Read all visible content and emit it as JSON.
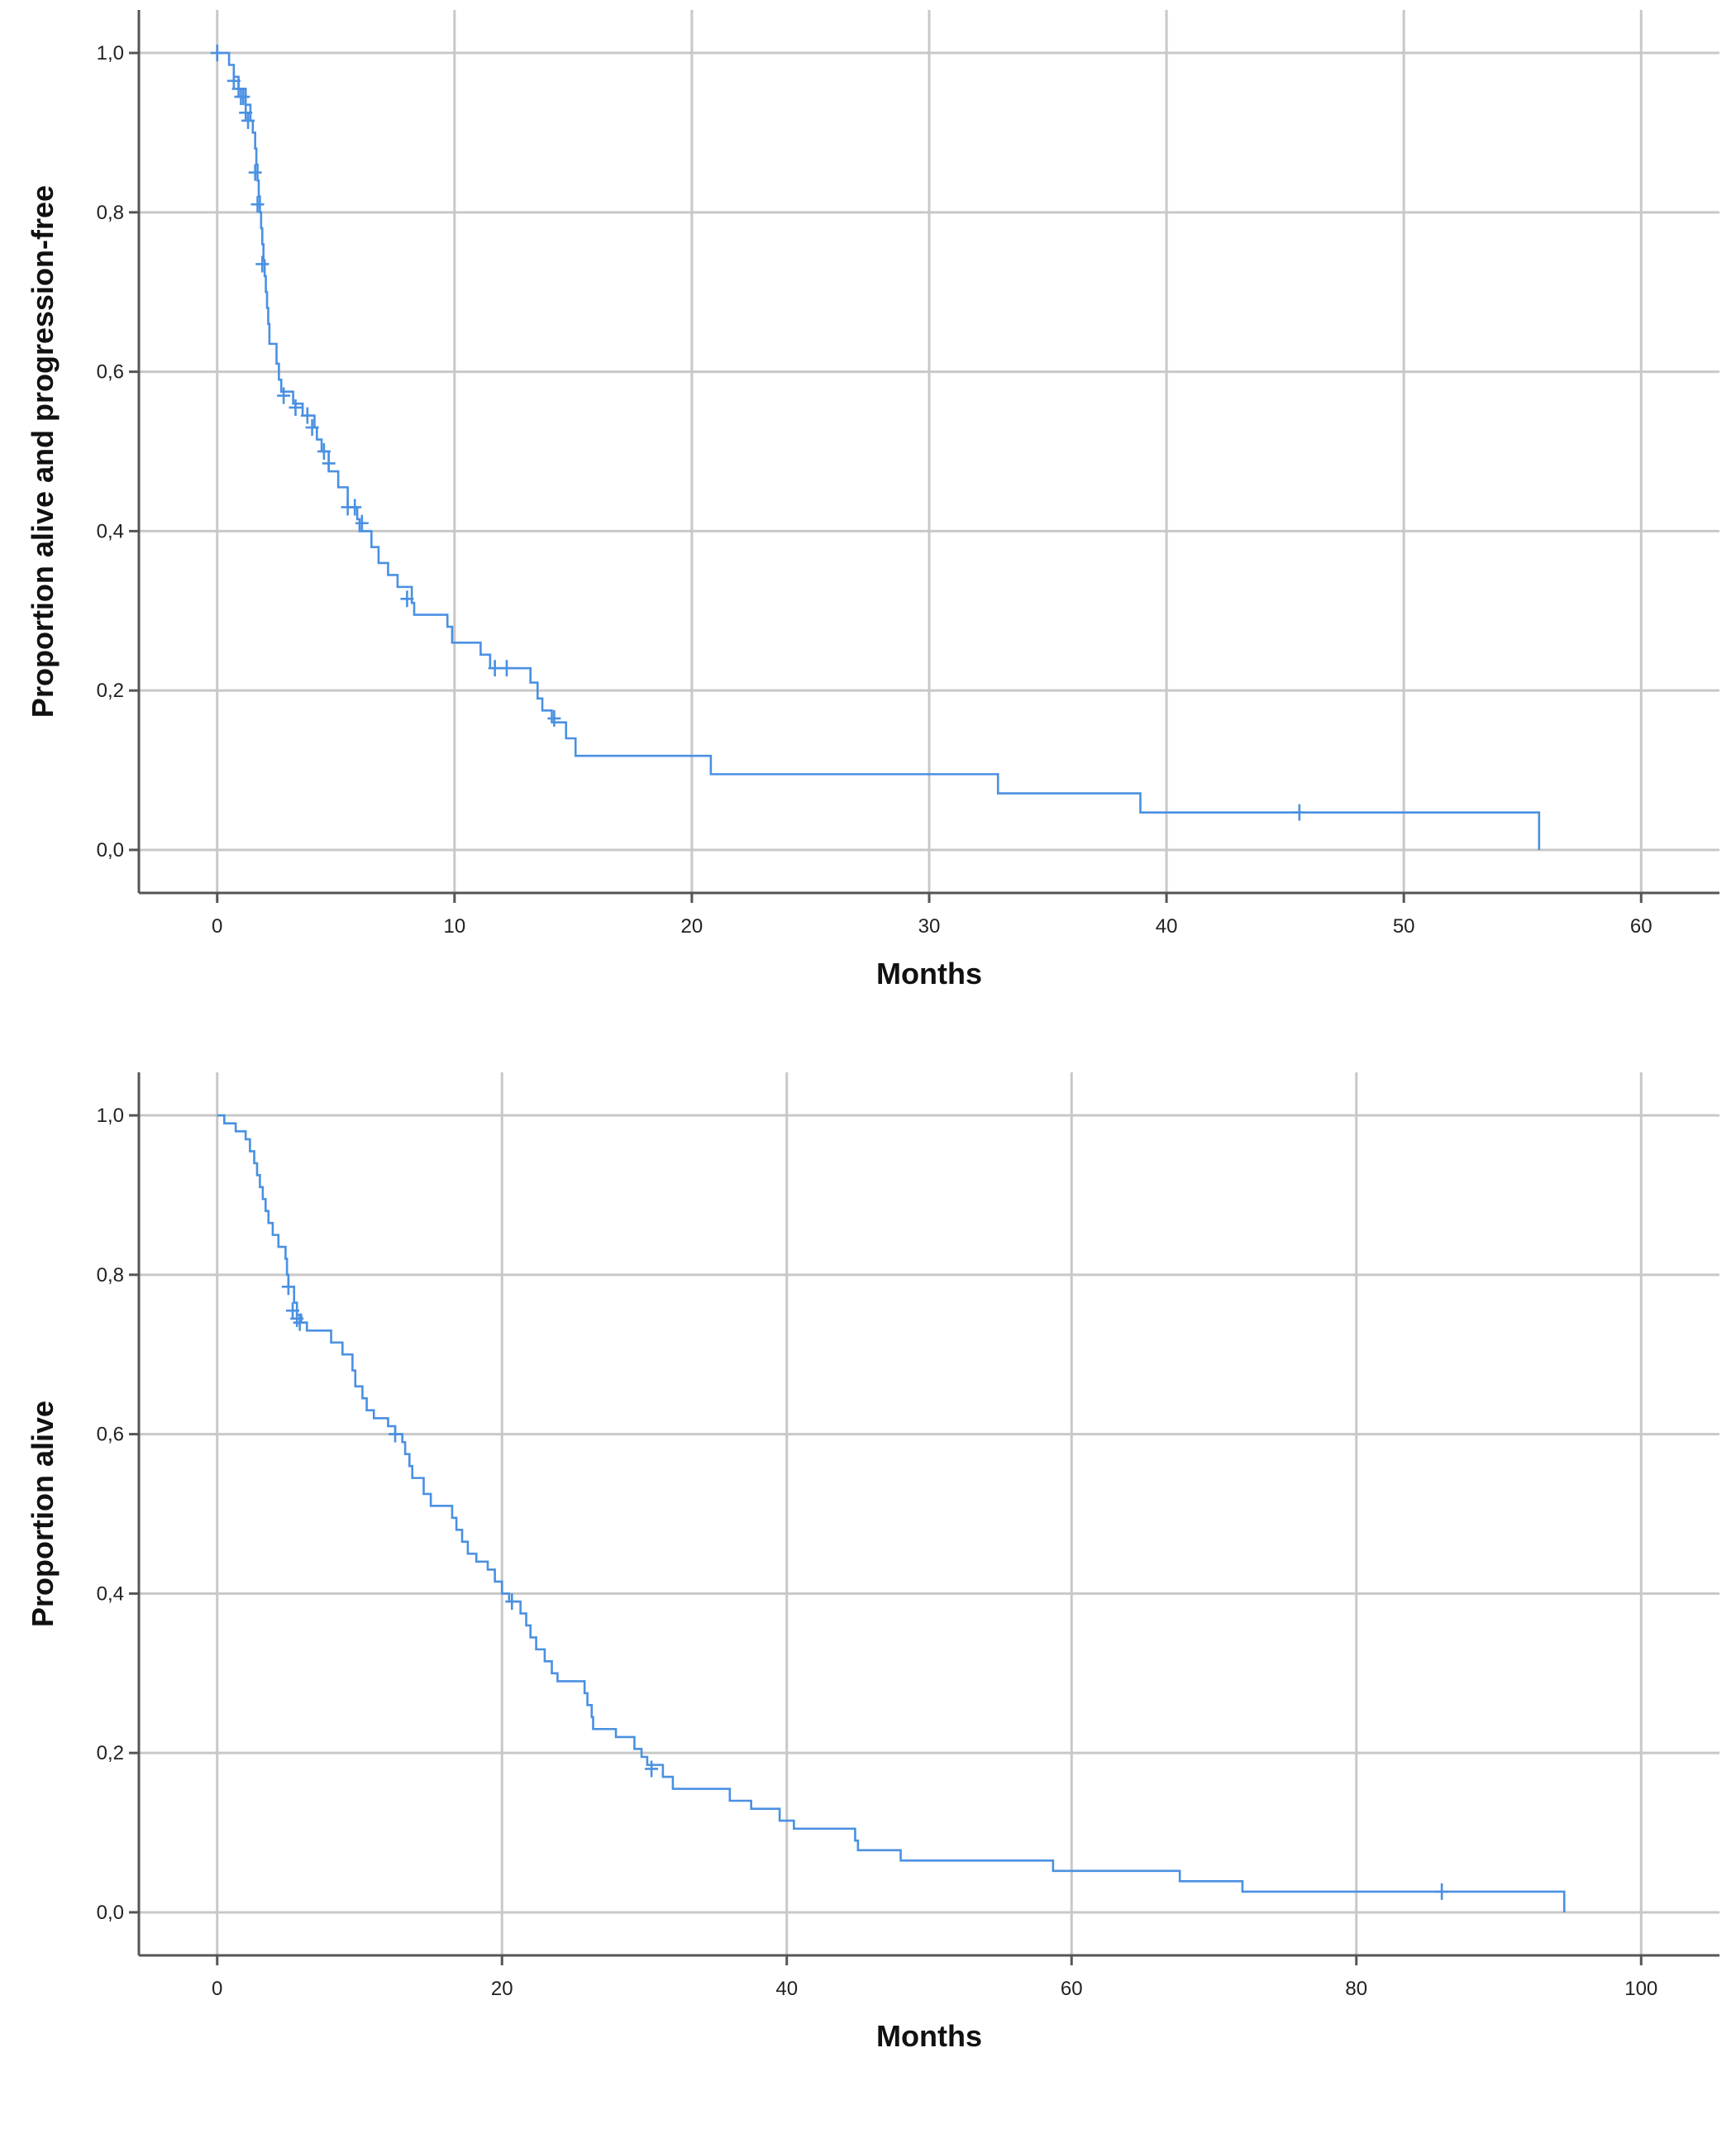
{
  "colors": {
    "curve": "#4a90e2",
    "grid": "#c8c8c8",
    "axis": "#555555"
  },
  "chart_data": [
    {
      "type": "line",
      "step": true,
      "xlabel": "Months",
      "ylabel": "Proportion alive and progression-free",
      "xlim": [
        -3.3,
        63.3
      ],
      "ylim": [
        -0.054,
        1.054
      ],
      "xticks": [
        0,
        10,
        20,
        30,
        40,
        50,
        60
      ],
      "xtick_labels": [
        "0",
        "10",
        "20",
        "30",
        "40",
        "50",
        "60"
      ],
      "yticks": [
        0.0,
        0.2,
        0.4,
        0.6,
        0.8,
        1.0
      ],
      "ytick_labels": [
        "0,0",
        "0,2",
        "0,4",
        "0,6",
        "0,8",
        "1,0"
      ],
      "grid": true,
      "legend": "none",
      "series": [
        {
          "steps": [
            [
              0,
              1.0
            ],
            [
              0.5,
              0.985
            ],
            [
              0.7,
              0.97
            ],
            [
              0.9,
              0.955
            ],
            [
              1.2,
              0.935
            ],
            [
              1.4,
              0.915
            ],
            [
              1.5,
              0.9
            ],
            [
              1.6,
              0.88
            ],
            [
              1.65,
              0.86
            ],
            [
              1.7,
              0.84
            ],
            [
              1.75,
              0.82
            ],
            [
              1.8,
              0.8
            ],
            [
              1.85,
              0.78
            ],
            [
              1.9,
              0.76
            ],
            [
              1.95,
              0.74
            ],
            [
              2.0,
              0.72
            ],
            [
              2.05,
              0.7
            ],
            [
              2.1,
              0.68
            ],
            [
              2.15,
              0.66
            ],
            [
              2.2,
              0.635
            ],
            [
              2.5,
              0.61
            ],
            [
              2.6,
              0.59
            ],
            [
              2.7,
              0.575
            ],
            [
              3.2,
              0.56
            ],
            [
              3.6,
              0.545
            ],
            [
              4.1,
              0.53
            ],
            [
              4.2,
              0.515
            ],
            [
              4.4,
              0.5
            ],
            [
              4.7,
              0.475
            ],
            [
              5.1,
              0.455
            ],
            [
              5.5,
              0.43
            ],
            [
              5.9,
              0.415
            ],
            [
              6.0,
              0.4
            ],
            [
              6.5,
              0.38
            ],
            [
              6.8,
              0.36
            ],
            [
              7.2,
              0.345
            ],
            [
              7.6,
              0.33
            ],
            [
              8.2,
              0.31
            ],
            [
              8.3,
              0.295
            ],
            [
              9.7,
              0.28
            ],
            [
              9.9,
              0.26
            ],
            [
              11.1,
              0.245
            ],
            [
              11.5,
              0.228
            ],
            [
              13.2,
              0.21
            ],
            [
              13.5,
              0.19
            ],
            [
              13.7,
              0.175
            ],
            [
              14.1,
              0.16
            ],
            [
              14.7,
              0.14
            ],
            [
              15.1,
              0.118
            ],
            [
              20.8,
              0.095
            ],
            [
              32.9,
              0.071
            ],
            [
              38.9,
              0.047
            ],
            [
              55.7,
              0.0
            ]
          ],
          "censored": [
            [
              0,
              1.0
            ],
            [
              0.7,
              0.965
            ],
            [
              0.9,
              0.955
            ],
            [
              1.0,
              0.945
            ],
            [
              1.1,
              0.945
            ],
            [
              1.2,
              0.925
            ],
            [
              1.3,
              0.915
            ],
            [
              1.6,
              0.85
            ],
            [
              1.7,
              0.81
            ],
            [
              1.9,
              0.735
            ],
            [
              2.8,
              0.57
            ],
            [
              3.3,
              0.555
            ],
            [
              3.8,
              0.545
            ],
            [
              4.0,
              0.53
            ],
            [
              4.5,
              0.5
            ],
            [
              4.7,
              0.485
            ],
            [
              5.5,
              0.43
            ],
            [
              5.8,
              0.43
            ],
            [
              6.1,
              0.41
            ],
            [
              8.0,
              0.315
            ],
            [
              11.7,
              0.228
            ],
            [
              12.2,
              0.228
            ],
            [
              14.2,
              0.165
            ],
            [
              45.6,
              0.047
            ]
          ]
        }
      ]
    },
    {
      "type": "line",
      "step": true,
      "xlabel": "Months",
      "ylabel": "Proportion alive",
      "xlim": [
        -5.5,
        105.5
      ],
      "ylim": [
        -0.054,
        1.054
      ],
      "xticks": [
        0,
        20,
        40,
        60,
        80,
        100
      ],
      "xtick_labels": [
        "0",
        "20",
        "40",
        "60",
        "80",
        "100"
      ],
      "yticks": [
        0.0,
        0.2,
        0.4,
        0.6,
        0.8,
        1.0
      ],
      "ytick_labels": [
        "0,0",
        "0,2",
        "0,4",
        "0,6",
        "0,8",
        "1,0"
      ],
      "grid": true,
      "legend": "none",
      "series": [
        {
          "steps": [
            [
              0,
              1.0
            ],
            [
              0.5,
              0.99
            ],
            [
              1.3,
              0.98
            ],
            [
              2.0,
              0.97
            ],
            [
              2.3,
              0.955
            ],
            [
              2.6,
              0.94
            ],
            [
              2.8,
              0.925
            ],
            [
              3.0,
              0.91
            ],
            [
              3.2,
              0.895
            ],
            [
              3.4,
              0.88
            ],
            [
              3.6,
              0.865
            ],
            [
              3.9,
              0.85
            ],
            [
              4.3,
              0.835
            ],
            [
              4.8,
              0.82
            ],
            [
              4.9,
              0.8
            ],
            [
              5.0,
              0.785
            ],
            [
              5.4,
              0.765
            ],
            [
              5.6,
              0.75
            ],
            [
              5.9,
              0.74
            ],
            [
              6.3,
              0.73
            ],
            [
              8.0,
              0.715
            ],
            [
              8.8,
              0.7
            ],
            [
              9.5,
              0.68
            ],
            [
              9.7,
              0.66
            ],
            [
              10.2,
              0.645
            ],
            [
              10.5,
              0.63
            ],
            [
              11.0,
              0.62
            ],
            [
              12.0,
              0.61
            ],
            [
              12.5,
              0.6
            ],
            [
              13.0,
              0.59
            ],
            [
              13.2,
              0.575
            ],
            [
              13.5,
              0.56
            ],
            [
              13.7,
              0.545
            ],
            [
              14.5,
              0.525
            ],
            [
              15.0,
              0.51
            ],
            [
              16.5,
              0.495
            ],
            [
              16.8,
              0.48
            ],
            [
              17.2,
              0.465
            ],
            [
              17.6,
              0.45
            ],
            [
              18.2,
              0.44
            ],
            [
              19.0,
              0.43
            ],
            [
              19.5,
              0.415
            ],
            [
              20.0,
              0.4
            ],
            [
              20.5,
              0.39
            ],
            [
              21.3,
              0.375
            ],
            [
              21.7,
              0.36
            ],
            [
              22.0,
              0.345
            ],
            [
              22.4,
              0.33
            ],
            [
              23.0,
              0.315
            ],
            [
              23.5,
              0.3
            ],
            [
              23.9,
              0.29
            ],
            [
              25.8,
              0.275
            ],
            [
              26.0,
              0.26
            ],
            [
              26.3,
              0.245
            ],
            [
              26.4,
              0.23
            ],
            [
              28.0,
              0.22
            ],
            [
              29.3,
              0.205
            ],
            [
              29.8,
              0.195
            ],
            [
              30.2,
              0.185
            ],
            [
              31.3,
              0.17
            ],
            [
              32.0,
              0.155
            ],
            [
              36.0,
              0.14
            ],
            [
              37.5,
              0.13
            ],
            [
              39.5,
              0.115
            ],
            [
              40.5,
              0.105
            ],
            [
              44.8,
              0.09
            ],
            [
              45.0,
              0.078
            ],
            [
              48.0,
              0.065
            ],
            [
              58.7,
              0.052
            ],
            [
              67.6,
              0.039
            ],
            [
              72.0,
              0.026
            ],
            [
              94.6,
              0.0
            ]
          ],
          "censored": [
            [
              5.0,
              0.785
            ],
            [
              5.3,
              0.755
            ],
            [
              5.6,
              0.745
            ],
            [
              5.8,
              0.74
            ],
            [
              12.5,
              0.6
            ],
            [
              20.7,
              0.39
            ],
            [
              30.5,
              0.18
            ],
            [
              86.0,
              0.026
            ]
          ]
        }
      ]
    }
  ]
}
